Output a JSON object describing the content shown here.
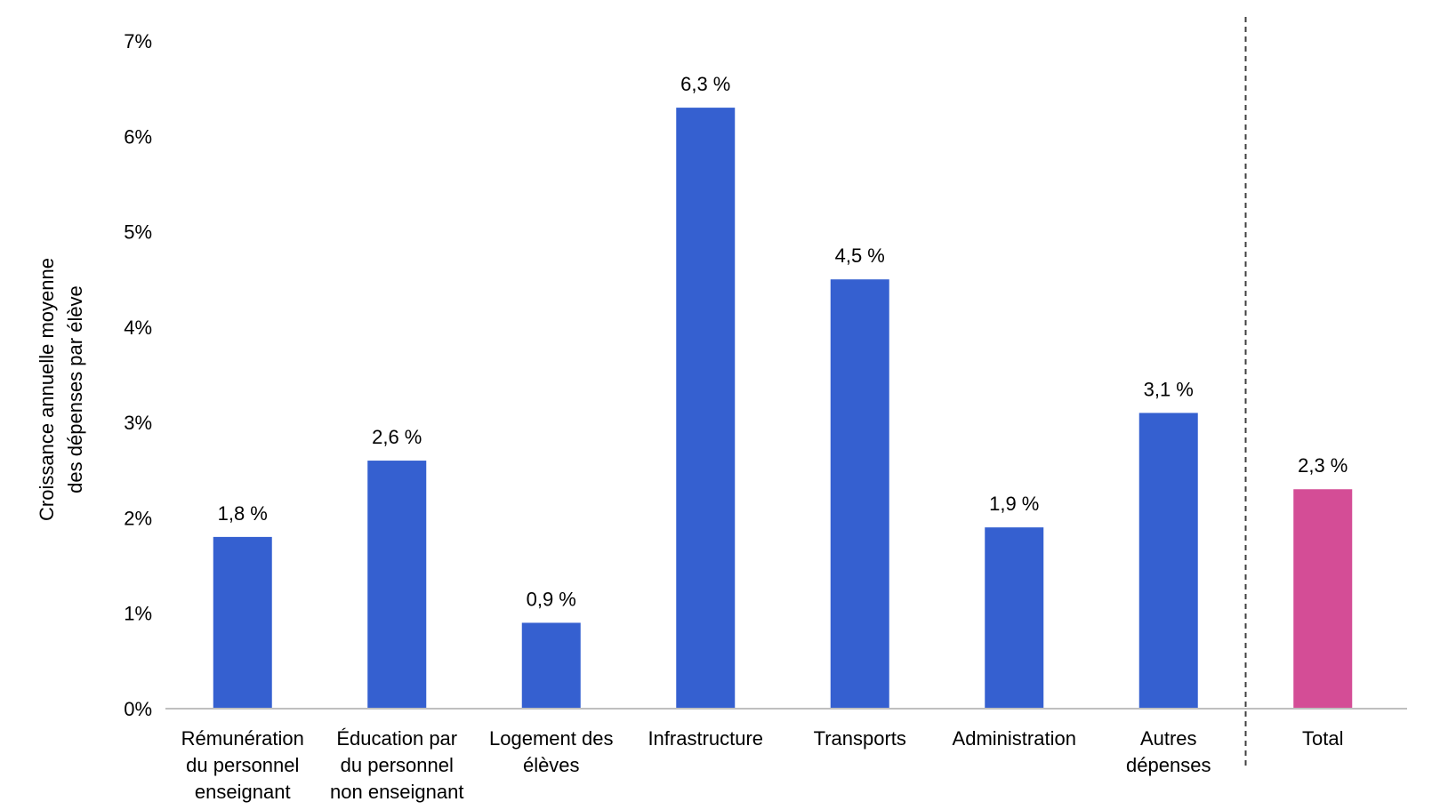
{
  "chart_data": {
    "type": "bar",
    "title": "",
    "xlabel": "",
    "ylabel_lines": [
      "Croissance annuelle moyenne",
      "des dépenses par élève"
    ],
    "ylim": [
      0,
      7
    ],
    "yticks": [
      "0%",
      "1%",
      "2%",
      "3%",
      "4%",
      "5%",
      "6%",
      "7%"
    ],
    "grid": false,
    "legend": "none",
    "categories": [
      [
        "Rémunération",
        "du personnel",
        "enseignant"
      ],
      [
        "Éducation par",
        "du personnel",
        "non enseignant"
      ],
      [
        "Logement des",
        "élèves"
      ],
      [
        "Infrastructure"
      ],
      [
        "Transports"
      ],
      [
        "Administration"
      ],
      [
        "Autres",
        "dépenses"
      ],
      [
        "Total"
      ]
    ],
    "values": [
      1.8,
      2.6,
      0.9,
      6.3,
      4.5,
      1.9,
      3.1,
      2.3
    ],
    "data_labels": [
      "1,8 %",
      "2,6 %",
      "0,9 %",
      "6,3 %",
      "4,5 %",
      "1,9 %",
      "3,1 %",
      "2,3 %"
    ],
    "separator_before_index": 7,
    "colors": {
      "bar": "#3560D0",
      "total_bar": "#D44D96",
      "axis": "#BFBFBF",
      "separator": "#404040"
    },
    "highlight_index": 7
  }
}
